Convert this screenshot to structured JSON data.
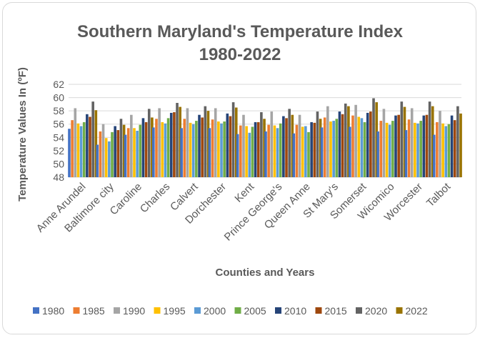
{
  "chart_data": {
    "type": "bar",
    "title": "Southern Maryland's Temperature Index 1980-2022",
    "title_lines": [
      "Southern Maryland's Temperature Index",
      "1980-2022"
    ],
    "xlabel": "Counties and Years",
    "ylabel": "Temperature Values In (ºF)",
    "ylim": [
      48,
      62
    ],
    "yticks": [
      48,
      50,
      52,
      54,
      56,
      58,
      60,
      62
    ],
    "grid": true,
    "legend_position": "bottom",
    "categories": [
      "Anne Arundel",
      "Baltimore city",
      "Caroline",
      "Charles",
      "Calvert",
      "Dorchester",
      "Kent",
      "Prince George's",
      "Queen Anne",
      "St Mary's",
      "Somerset",
      "Wicomico",
      "Worcester",
      "Talbot"
    ],
    "series": [
      {
        "name": "1980",
        "color": "#4472c4",
        "values": [
          55.3,
          52.9,
          54.4,
          55.5,
          55.4,
          55.4,
          54.5,
          54.9,
          54.6,
          55.5,
          55.6,
          54.9,
          55.1,
          54.4
        ]
      },
      {
        "name": "1985",
        "color": "#ed7d31",
        "values": [
          56.6,
          54.9,
          55.4,
          56.8,
          56.8,
          56.7,
          55.8,
          55.9,
          55.9,
          57.0,
          57.3,
          56.5,
          56.7,
          56.3
        ]
      },
      {
        "name": "1990",
        "color": "#a5a5a5",
        "values": [
          58.4,
          56.0,
          57.4,
          58.4,
          58.4,
          58.4,
          57.4,
          57.9,
          57.4,
          58.7,
          58.9,
          58.3,
          58.4,
          58.0
        ]
      },
      {
        "name": "1995",
        "color": "#ffc000",
        "values": [
          56.1,
          53.9,
          55.4,
          56.3,
          56.2,
          56.4,
          55.7,
          55.8,
          55.6,
          56.4,
          57.1,
          56.2,
          56.2,
          56.1
        ]
      },
      {
        "name": "2000",
        "color": "#5b9bd5",
        "values": [
          55.7,
          53.4,
          55.0,
          56.1,
          56.0,
          56.1,
          54.7,
          55.4,
          55.7,
          56.5,
          56.9,
          55.9,
          56.1,
          55.7
        ]
      },
      {
        "name": "2005",
        "color": "#70ad47",
        "values": [
          56.3,
          54.8,
          55.9,
          56.9,
          56.5,
          56.4,
          55.6,
          56.1,
          54.8,
          56.8,
          56.3,
          56.5,
          56.5,
          56.0
        ]
      },
      {
        "name": "2010",
        "color": "#264478",
        "values": [
          57.5,
          55.7,
          56.9,
          57.7,
          57.4,
          57.6,
          56.3,
          57.2,
          56.3,
          57.9,
          57.7,
          57.3,
          57.3,
          57.3
        ]
      },
      {
        "name": "2015",
        "color": "#9e480e",
        "values": [
          57.1,
          55.1,
          56.3,
          57.8,
          57.0,
          57.2,
          56.3,
          56.9,
          56.2,
          57.5,
          57.9,
          57.4,
          57.4,
          56.6
        ]
      },
      {
        "name": "2020",
        "color": "#636363",
        "values": [
          59.4,
          56.8,
          58.3,
          59.2,
          58.7,
          59.3,
          57.8,
          58.3,
          57.9,
          59.1,
          59.9,
          59.4,
          59.4,
          58.7
        ]
      },
      {
        "name": "2022",
        "color": "#997300",
        "values": [
          58.1,
          55.9,
          57.0,
          58.6,
          58.0,
          58.5,
          56.8,
          57.4,
          56.8,
          58.7,
          59.3,
          58.6,
          58.7,
          57.6
        ]
      }
    ]
  }
}
